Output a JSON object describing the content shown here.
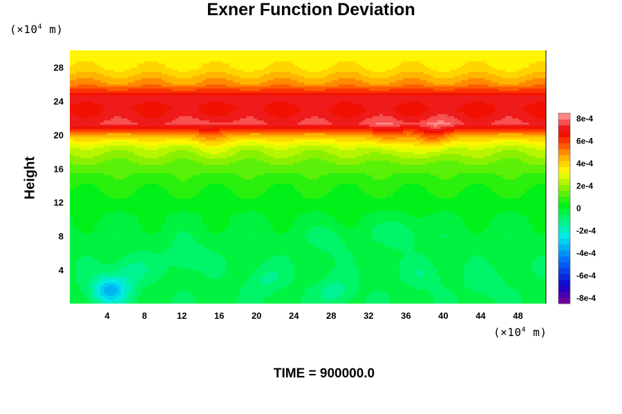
{
  "chart_data": {
    "type": "heatmap",
    "title": "Exner Function Deviation",
    "ylabel": "Height",
    "xlabel": "",
    "x_unit": {
      "prefix": "(×10",
      "exp": "4",
      "suffix": " m)"
    },
    "y_unit": {
      "prefix": "(×10",
      "exp": "4",
      "suffix": " m)"
    },
    "xlim": [
      0,
      51
    ],
    "ylim": [
      0,
      30
    ],
    "x_ticks": [
      4,
      8,
      12,
      16,
      20,
      24,
      28,
      32,
      36,
      40,
      44,
      48
    ],
    "y_ticks": [
      4,
      8,
      12,
      16,
      20,
      24,
      28
    ],
    "colorbar": {
      "range": [
        -0.00085,
        0.00085
      ],
      "tick_values": [
        0.0008,
        0.0006,
        0.0004,
        0.0002,
        0,
        -0.0002,
        -0.0004,
        -0.0006,
        -0.0008
      ],
      "tick_labels": [
        "8e-4",
        "6e-4",
        "4e-4",
        "2e-4",
        "0",
        "-2e-4",
        "-4e-4",
        "-6e-4",
        "-8e-4"
      ],
      "levels": 32
    },
    "vertical_profile": [
      {
        "height": 0,
        "value": -4e-05
      },
      {
        "height": 8,
        "value": -3e-05
      },
      {
        "height": 12,
        "value": 2e-05
      },
      {
        "height": 16,
        "value": 0.00012
      },
      {
        "height": 18.5,
        "value": 0.00025
      },
      {
        "height": 20,
        "value": 0.00045
      },
      {
        "height": 21.3,
        "value": 0.00075
      },
      {
        "height": 23,
        "value": 0.00068
      },
      {
        "height": 24.5,
        "value": 0.00072
      },
      {
        "height": 26,
        "value": 0.0005
      },
      {
        "height": 28,
        "value": 0.00037
      },
      {
        "height": 30,
        "value": 0.00035
      }
    ],
    "anomalies": [
      {
        "x": 4.3,
        "y": 1.6,
        "amp": -0.0003
      },
      {
        "x": 6.5,
        "y": 4.0,
        "amp": -0.0001
      },
      {
        "x": 12.5,
        "y": 5.5,
        "amp": -8e-05
      },
      {
        "x": 21,
        "y": 3,
        "amp": -8e-05
      },
      {
        "x": 28.5,
        "y": 1.5,
        "amp": -0.0001
      },
      {
        "x": 28,
        "y": 7.5,
        "amp": -5e-05
      },
      {
        "x": 35.5,
        "y": 8.5,
        "amp": -8e-05
      },
      {
        "x": 38,
        "y": 3.5,
        "amp": -6e-05
      },
      {
        "x": 44.5,
        "y": 2.5,
        "amp": -6e-05
      },
      {
        "x": 15,
        "y": 19.8,
        "amp": 8e-05
      },
      {
        "x": 34,
        "y": 19.8,
        "amp": 0.0001
      },
      {
        "x": 39,
        "y": 19.7,
        "amp": 0.00015
      }
    ]
  },
  "footer": {
    "time_label": "TIME = 900000.0"
  }
}
